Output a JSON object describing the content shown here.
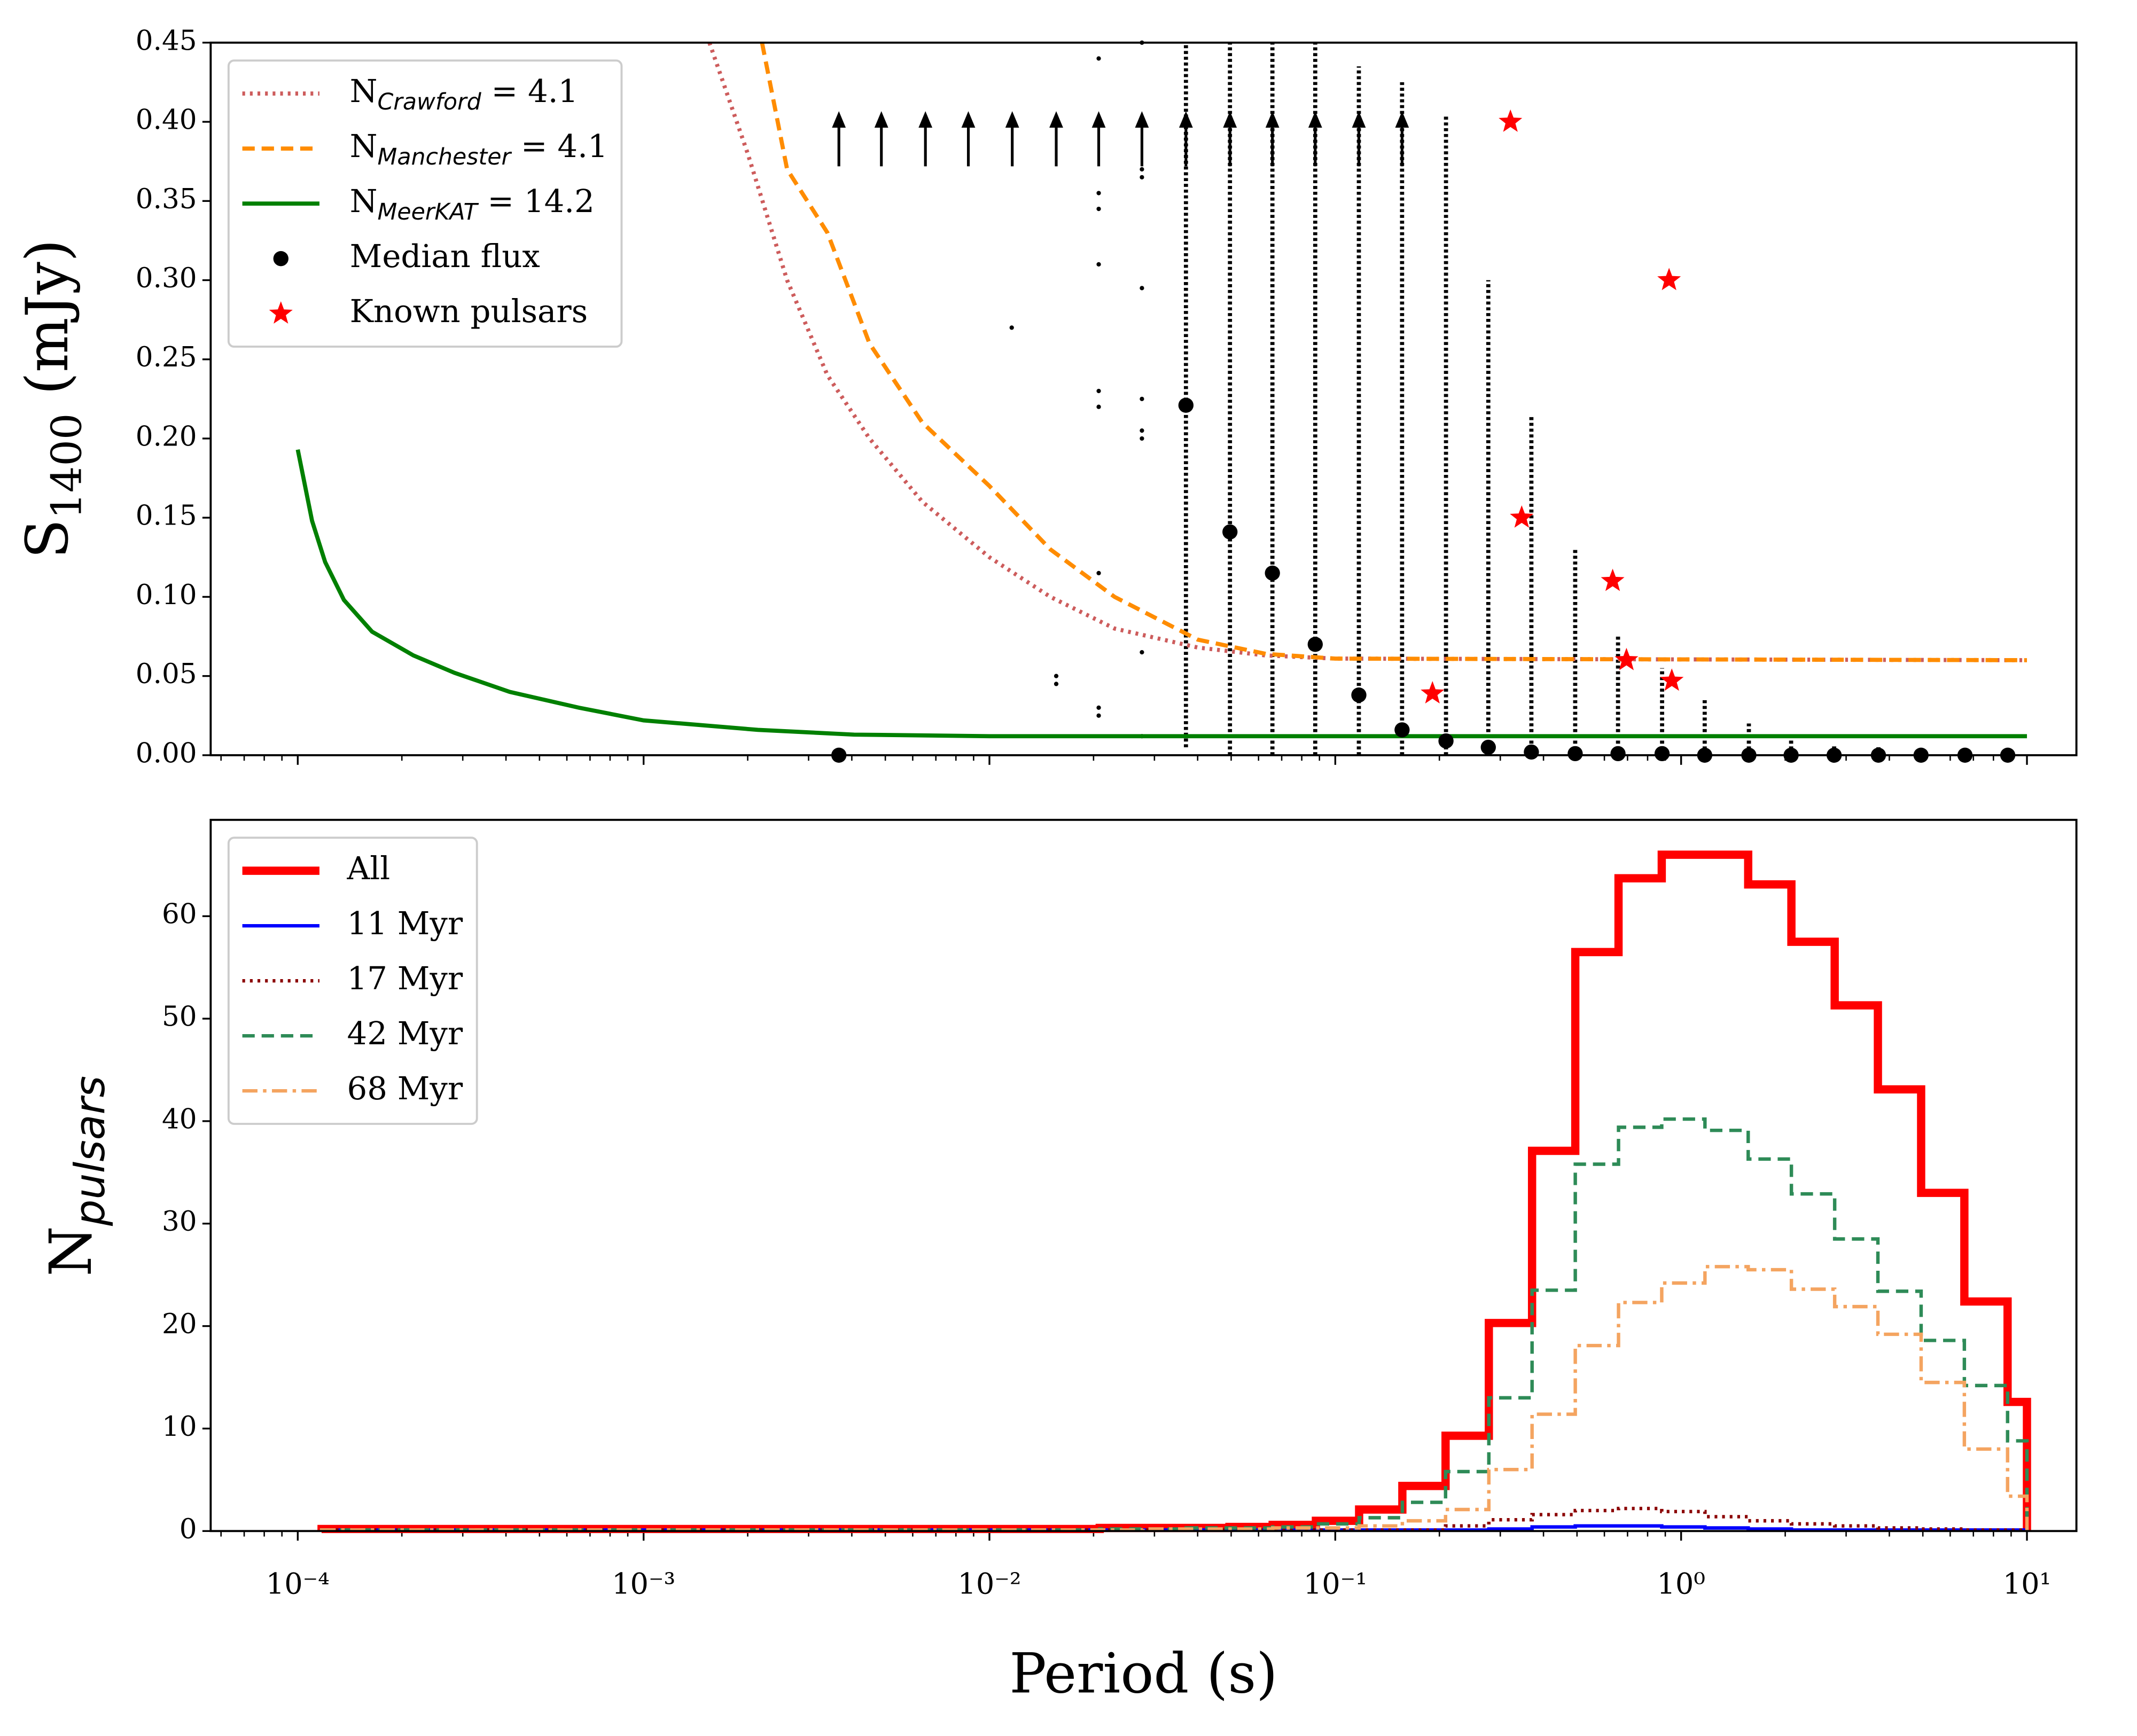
{
  "chart_data": [
    {
      "type": "line",
      "xscale": "log",
      "legend": "upper left",
      "minor_ticks": true,
      "ylabel": {
        "base": "S",
        "sub": "1400",
        "rest": " (mJy)"
      },
      "xlim": [
        5.6e-05,
        13.9
      ],
      "ylim": [
        0,
        0.45
      ],
      "xticks": [
        0.0001,
        0.001,
        0.01,
        0.1,
        1,
        10
      ],
      "yticks": [
        {
          "value": 0,
          "label": "0.00"
        },
        0.05,
        {
          "value": 0.1,
          "label": "0.10"
        },
        0.15,
        {
          "value": 0.2,
          "label": "0.20"
        },
        0.25,
        {
          "value": 0.3,
          "label": "0.30"
        },
        0.35,
        {
          "value": 0.4,
          "label": "0.40"
        },
        0.45
      ],
      "series": [
        {
          "name": {
            "base": "N",
            "sub": "Crawford",
            "rest": " = 4.1",
            "sub_italic": true
          },
          "kind": "line",
          "style": "dotted",
          "color": "#cd5c5c",
          "x": [
            0.00155,
            0.002,
            0.0026,
            0.0034,
            0.0045,
            0.0064,
            0.01,
            0.015,
            0.023,
            0.04,
            0.063,
            0.1,
            10
          ],
          "values": [
            0.45,
            0.38,
            0.3,
            0.24,
            0.2,
            0.16,
            0.125,
            0.1,
            0.08,
            0.068,
            0.063,
            0.061,
            0.06
          ]
        },
        {
          "name": {
            "base": "N",
            "sub": "Manchester",
            "rest": " = 4.1",
            "sub_italic": true
          },
          "kind": "line",
          "style": "dashed",
          "color": "#ff8c00",
          "x": [
            0.0022,
            0.0026,
            0.0034,
            0.0045,
            0.0064,
            0.01,
            0.015,
            0.023,
            0.04,
            0.063,
            0.1,
            10
          ],
          "values": [
            0.45,
            0.37,
            0.33,
            0.26,
            0.21,
            0.17,
            0.13,
            0.1,
            0.073,
            0.064,
            0.061,
            0.06
          ]
        },
        {
          "name": {
            "base": "N",
            "sub": "MeerKAT",
            "rest": " = 14.2",
            "sub_italic": true
          },
          "kind": "line",
          "style": "solid",
          "color": "#008000",
          "x": [
            0.0001,
            0.00011,
            0.00012,
            0.000136,
            0.000164,
            0.000216,
            0.000284,
            0.00041,
            0.00065,
            0.001,
            0.00214,
            0.00406,
            0.01,
            10
          ],
          "values": [
            0.193,
            0.148,
            0.122,
            0.098,
            0.078,
            0.063,
            0.052,
            0.04,
            0.03,
            0.022,
            0.016,
            0.013,
            0.012,
            0.012
          ]
        },
        {
          "name": {
            "base": "Median flux"
          },
          "kind": "points",
          "color": "#000000",
          "x": [
            0.00367,
            0.037,
            0.0496,
            0.0658,
            0.0875,
            0.117,
            0.156,
            0.209,
            0.277,
            0.369,
            0.494,
            0.657,
            0.881,
            1.17,
            1.57,
            2.08,
            2.77,
            3.72,
            4.94,
            6.62,
            8.8
          ],
          "values": [
            0,
            0.221,
            0.141,
            0.115,
            0.07,
            0.038,
            0.016,
            0.009,
            0.005,
            0.002,
            0.001,
            0.001,
            0.001,
            0,
            0,
            0,
            0,
            0,
            0,
            0,
            0
          ]
        },
        {
          "name": {
            "base": "Known pulsars"
          },
          "kind": "stars",
          "color": "#ff0000",
          "x": [
            0.321,
            0.923,
            0.346,
            0.634,
            0.191,
            0.695,
            0.94
          ],
          "values": [
            0.4,
            0.3,
            0.15,
            0.11,
            0.039,
            0.06,
            0.047
          ]
        }
      ],
      "samples": {
        "x": [
          0.037,
          0.0496,
          0.0658,
          0.0875,
          0.117,
          0.156,
          0.209,
          0.277,
          0.369,
          0.494,
          0.657,
          0.881,
          1.17,
          1.57,
          2.08,
          2.77,
          3.72
        ],
        "low": [
          0.005,
          0,
          0,
          0,
          0,
          0,
          0,
          0,
          0,
          0,
          0,
          0,
          0,
          0,
          0,
          0,
          0
        ],
        "high": [
          0.45,
          0.45,
          0.45,
          0.45,
          0.435,
          0.425,
          0.405,
          0.3,
          0.215,
          0.13,
          0.076,
          0.055,
          0.035,
          0.02,
          0.012,
          0.006,
          0.005
        ]
      },
      "scatter": {
        "x": [
          0.0116,
          0.0156,
          0.0156,
          0.0207,
          0.0207,
          0.0207,
          0.0207,
          0.0207,
          0.0207,
          0.0207,
          0.0207,
          0.0207,
          0.0276,
          0.0276,
          0.0276,
          0.0276,
          0.0276,
          0.0276,
          0.0276,
          0.0276,
          0.0276
        ],
        "values": [
          0.27,
          0.045,
          0.05,
          0.44,
          0.355,
          0.345,
          0.31,
          0.23,
          0.22,
          0.115,
          0.03,
          0.025,
          0.45,
          0.37,
          0.365,
          0.295,
          0.225,
          0.205,
          0.2,
          0.065,
          0.012
        ]
      },
      "upper_limits": {
        "x": [
          0.00367,
          0.00487,
          0.00653,
          0.00869,
          0.01164,
          0.0156,
          0.0207,
          0.0276,
          0.037,
          0.0496,
          0.0658,
          0.0875,
          0.117,
          0.156
        ]
      }
    },
    {
      "type": "histogram",
      "xscale": "log",
      "legend": "upper left",
      "minor_ticks": true,
      "xlabel": "Period (s)",
      "ylabel": {
        "base": "N",
        "sub": "pulsars",
        "sub_italic": true
      },
      "xlim": [
        5.6e-05,
        13.9
      ],
      "ylim": [
        0,
        69.4
      ],
      "xticks": [
        {
          "value": 0.0001,
          "label": "10⁻⁴"
        },
        {
          "value": 0.001,
          "label": "10⁻³"
        },
        {
          "value": 0.01,
          "label": "10⁻²"
        },
        {
          "value": 0.1,
          "label": "10⁻¹"
        },
        {
          "value": 1,
          "label": "10⁰"
        },
        {
          "value": 10,
          "label": "10¹"
        }
      ],
      "yticks": [
        0,
        10,
        20,
        30,
        40,
        50,
        60
      ],
      "bins": [
        0.0001172,
        0.0001563,
        0.0002084,
        0.000278,
        0.0003707,
        0.0004943,
        0.0006592,
        0.000879,
        0.001172,
        0.001563,
        0.002084,
        0.00278,
        0.003707,
        0.004943,
        0.006592,
        0.00879,
        0.01172,
        0.01563,
        0.02084,
        0.0278,
        0.03707,
        0.04943,
        0.06592,
        0.0879,
        0.1172,
        0.1563,
        0.2084,
        0.278,
        0.3707,
        0.4943,
        0.6592,
        0.879,
        1.172,
        1.563,
        2.084,
        2.78,
        3.707,
        4.943,
        6.592,
        8.79,
        10
      ],
      "series": [
        {
          "name": {
            "base": "All"
          },
          "color": "#ff0000",
          "style": "solid",
          "width": 6,
          "values": [
            0.2,
            0.2,
            0.2,
            0.2,
            0.2,
            0.2,
            0.2,
            0.2,
            0.2,
            0.2,
            0.2,
            0.2,
            0.2,
            0.2,
            0.2,
            0.2,
            0.2,
            0.2,
            0.3,
            0.3,
            0.3,
            0.4,
            0.6,
            1.0,
            2.1,
            4.4,
            9.3,
            20.3,
            37.1,
            56.5,
            63.7,
            66.0,
            66.0,
            63.1,
            57.5,
            51.3,
            43.1,
            33.0,
            22.4,
            12.6
          ]
        },
        {
          "name": {
            "base": "11 Myr"
          },
          "color": "#0000ff",
          "style": "solid",
          "width": 2.5,
          "values": [
            0.1,
            0.1,
            0.1,
            0.1,
            0.1,
            0.1,
            0.1,
            0.1,
            0.1,
            0.1,
            0.1,
            0.1,
            0.1,
            0.1,
            0.1,
            0.1,
            0.1,
            0.1,
            0.1,
            0.1,
            0.1,
            0.1,
            0.1,
            0.1,
            0.1,
            0.1,
            0.1,
            0.2,
            0.4,
            0.5,
            0.5,
            0.4,
            0.3,
            0.2,
            0.1,
            0.1,
            0.1,
            0.1,
            0.1,
            0.1
          ]
        },
        {
          "name": {
            "base": "17 Myr"
          },
          "color": "#8b0000",
          "style": "dotted",
          "width": 2.5,
          "values": [
            0.1,
            0.1,
            0.1,
            0.1,
            0.1,
            0.1,
            0.1,
            0.1,
            0.1,
            0.1,
            0.1,
            0.1,
            0.1,
            0.1,
            0.1,
            0.1,
            0.1,
            0.1,
            0.1,
            0.1,
            0.1,
            0.1,
            0.1,
            0.1,
            0.1,
            0.1,
            0.5,
            1.1,
            1.6,
            2.0,
            2.2,
            1.9,
            1.4,
            1.0,
            0.7,
            0.5,
            0.3,
            0.2,
            0.1,
            0.1
          ]
        },
        {
          "name": {
            "base": "42 Myr"
          },
          "color": "#2e8b57",
          "style": "dashed",
          "width": 2.5,
          "values": [
            0.1,
            0.1,
            0.1,
            0.1,
            0.1,
            0.1,
            0.1,
            0.1,
            0.1,
            0.1,
            0.1,
            0.1,
            0.1,
            0.1,
            0.1,
            0.1,
            0.1,
            0.1,
            0.2,
            0.2,
            0.3,
            0.3,
            0.4,
            0.7,
            1.3,
            2.8,
            5.8,
            13.0,
            23.5,
            35.8,
            39.4,
            40.2,
            39.1,
            36.3,
            32.9,
            28.5,
            23.4,
            18.6,
            14.2,
            8.8
          ]
        },
        {
          "name": {
            "base": "68 Myr"
          },
          "color": "#f4a460",
          "style": "dashdot",
          "width": 2.5,
          "values": [
            0.1,
            0.1,
            0.1,
            0.1,
            0.1,
            0.1,
            0.1,
            0.1,
            0.1,
            0.1,
            0.1,
            0.1,
            0.1,
            0.1,
            0.1,
            0.1,
            0.1,
            0.1,
            0.1,
            0.2,
            0.2,
            0.2,
            0.3,
            0.3,
            0.5,
            1.0,
            2.1,
            6.0,
            11.4,
            18.1,
            22.3,
            24.2,
            25.8,
            25.5,
            23.6,
            21.9,
            19.2,
            14.5,
            8.0,
            3.4
          ]
        }
      ]
    }
  ]
}
